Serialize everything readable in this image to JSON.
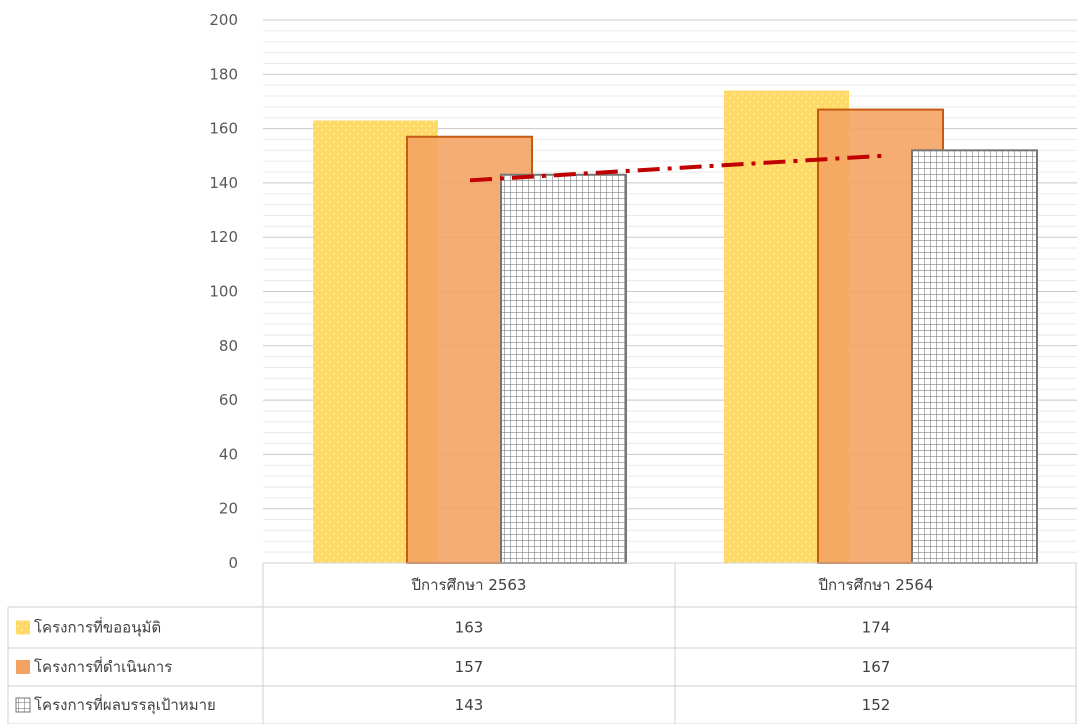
{
  "chart_data": {
    "type": "bar",
    "categories": [
      "ปีการศึกษา 2563",
      "ปีการศึกษา 2564"
    ],
    "series": [
      {
        "name": "โครงการที่ขออนุมัติ",
        "values": [
          163,
          174
        ],
        "color": "#FFD966",
        "pattern": "dots"
      },
      {
        "name": "โครงการที่ดำเนินการ",
        "values": [
          157,
          167
        ],
        "color": "#F4A261",
        "pattern": "solid"
      },
      {
        "name": "โครงการที่ผลบรรลุเป้าหมาย",
        "values": [
          143,
          152
        ],
        "color": "#808080",
        "pattern": "grid"
      }
    ],
    "trendline": {
      "type": "linear",
      "series": "โครงการที่ผลบรรลุเป้าหมาย",
      "color": "#C00000",
      "style": "dash-dot"
    },
    "ylim": [
      0,
      200
    ],
    "yticks": [
      0,
      20,
      40,
      60,
      80,
      100,
      120,
      140,
      160,
      180,
      200
    ],
    "grid": true,
    "data_table": true
  }
}
